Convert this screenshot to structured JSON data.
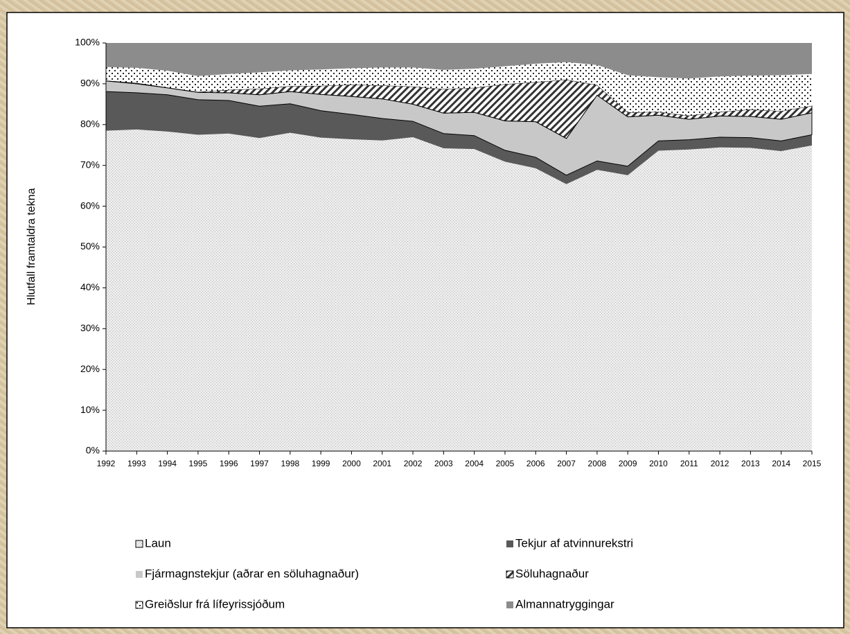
{
  "chart_data": {
    "type": "stacked_area",
    "y_label": "Hlutfall framtaldra tekna",
    "categories": [
      "1992",
      "1993",
      "1994",
      "1995",
      "1996",
      "1997",
      "1998",
      "1999",
      "2000",
      "2001",
      "2002",
      "2003",
      "2004",
      "2005",
      "2006",
      "2007",
      "2008",
      "2009",
      "2010",
      "2011",
      "2012",
      "2013",
      "2014",
      "2015"
    ],
    "series": [
      {
        "name": "Laun",
        "color": "#e4e4e4",
        "pattern": "dots",
        "values": [
          78.5,
          78.8,
          78.3,
          77.5,
          77.8,
          76.7,
          78.0,
          76.8,
          76.4,
          76.1,
          76.9,
          74.2,
          74.0,
          70.9,
          69.3,
          65.4,
          68.9,
          67.6,
          73.6,
          73.9,
          74.4,
          74.3,
          73.5,
          74.9
        ]
      },
      {
        "name": "Tekjur af atvinnurekstri",
        "color": "#595959",
        "pattern": "solid",
        "values": [
          9.6,
          9.0,
          9.0,
          8.6,
          8.1,
          7.8,
          7.1,
          6.6,
          6.1,
          5.4,
          3.9,
          3.6,
          3.3,
          2.8,
          2.7,
          2.2,
          2.2,
          2.2,
          2.4,
          2.4,
          2.5,
          2.5,
          2.5,
          2.6
        ]
      },
      {
        "name": "Fjármagnstekjur (aðrar en söluhagnaður)",
        "color": "#c8c8c8",
        "pattern": "solid",
        "values": [
          2.6,
          2.2,
          1.7,
          1.8,
          1.9,
          2.8,
          3.0,
          4.0,
          4.4,
          4.8,
          4.2,
          5.0,
          5.7,
          7.2,
          8.7,
          9.0,
          16.1,
          12.1,
          6.3,
          5.0,
          5.2,
          5.2,
          5.3,
          5.4
        ]
      },
      {
        "name": "Söluhagnaður",
        "color": "#333333",
        "pattern": "hatch",
        "values": [
          0.1,
          0.2,
          0.1,
          0.1,
          0.7,
          1.5,
          1.3,
          2.1,
          2.9,
          3.3,
          4.3,
          5.9,
          6.0,
          9.0,
          9.7,
          14.4,
          2.5,
          1.1,
          0.8,
          0.9,
          1.0,
          1.7,
          2.0,
          1.7
        ]
      },
      {
        "name": "Greiðslur frá lífeyrissjóðum",
        "color": "#222222",
        "pattern": "bigdots",
        "values": [
          3.3,
          3.7,
          4.1,
          3.9,
          3.9,
          4.0,
          3.9,
          4.0,
          4.0,
          4.4,
          4.7,
          4.7,
          4.7,
          4.4,
          4.5,
          4.3,
          4.9,
          9.1,
          8.5,
          9.1,
          8.7,
          8.3,
          8.8,
          7.8
        ]
      },
      {
        "name": "Almannatryggingar",
        "color": "#8c8c8c",
        "pattern": "solid",
        "values": [
          5.9,
          6.1,
          6.8,
          8.1,
          7.6,
          7.2,
          6.7,
          6.5,
          6.2,
          6.0,
          6.0,
          6.6,
          6.3,
          5.7,
          5.1,
          4.7,
          5.4,
          7.9,
          8.4,
          8.7,
          8.2,
          8.0,
          7.9,
          7.6
        ]
      }
    ],
    "ylim": [
      0,
      100
    ],
    "yticks": [
      {
        "value": 0,
        "label": "0%"
      },
      {
        "value": 10,
        "label": "10%"
      },
      {
        "value": 20,
        "label": "20%"
      },
      {
        "value": 30,
        "label": "30%"
      },
      {
        "value": 40,
        "label": "40%"
      },
      {
        "value": 50,
        "label": "50%"
      },
      {
        "value": 60,
        "label": "60%"
      },
      {
        "value": 70,
        "label": "70%"
      },
      {
        "value": 80,
        "label": "80%"
      },
      {
        "value": 90,
        "label": "90%"
      },
      {
        "value": 100,
        "label": "100%"
      }
    ],
    "grid": false
  }
}
